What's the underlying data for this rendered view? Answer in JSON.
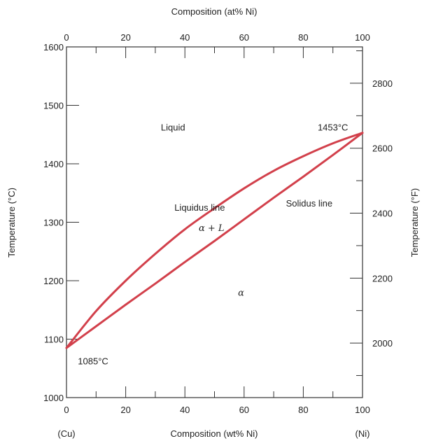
{
  "chart_data": {
    "type": "line",
    "title": "",
    "x_top_label": "Composition (at% Ni)",
    "x_bottom_label": "Composition (wt% Ni)",
    "y_left_label": "Temperature (°C)",
    "y_right_label": "Temperature (°F)",
    "xlim": [
      0,
      100
    ],
    "ylim": [
      1000,
      1600
    ],
    "x_ticks": [
      "0",
      "20",
      "40",
      "60",
      "80",
      "100"
    ],
    "y_left_ticks": [
      "1000",
      "1100",
      "1200",
      "1300",
      "1400",
      "1500",
      "1600"
    ],
    "y_right_ticks": [
      "2000",
      "2200",
      "2400",
      "2600",
      "2800"
    ],
    "y_right_tick_values_C": [
      1093.3,
      1204.4,
      1315.6,
      1426.7,
      1537.8
    ],
    "end_labels": {
      "left": "(Cu)",
      "right": "(Ni)"
    },
    "series": [
      {
        "name": "Liquidus line",
        "x": [
          0,
          10,
          20,
          30,
          40,
          50,
          60,
          70,
          80,
          90,
          100
        ],
        "y": [
          1085,
          1148,
          1200,
          1246,
          1288,
          1324,
          1358,
          1388,
          1413,
          1435,
          1453
        ]
      },
      {
        "name": "Solidus line",
        "x": [
          0,
          10,
          20,
          30,
          40,
          50,
          60,
          70,
          80,
          90,
          100
        ],
        "y": [
          1085,
          1122,
          1159,
          1195,
          1232,
          1268,
          1305,
          1342,
          1378,
          1415,
          1453
        ]
      }
    ],
    "line_color": "#d2404b",
    "annotations": [
      {
        "text": "Liquid",
        "x": 36,
        "y": 1463
      },
      {
        "text": "1453°C",
        "x": 90,
        "y": 1463
      },
      {
        "text": "Liquidus line",
        "x": 45,
        "y": 1326
      },
      {
        "text": "Solidus line",
        "x": 82,
        "y": 1333
      },
      {
        "text": "α + L",
        "x": 49,
        "y": 1291,
        "italic": true
      },
      {
        "text": "α",
        "x": 59,
        "y": 1180,
        "italic": true
      },
      {
        "text": "1085°C",
        "x": 9,
        "y": 1063
      }
    ]
  }
}
